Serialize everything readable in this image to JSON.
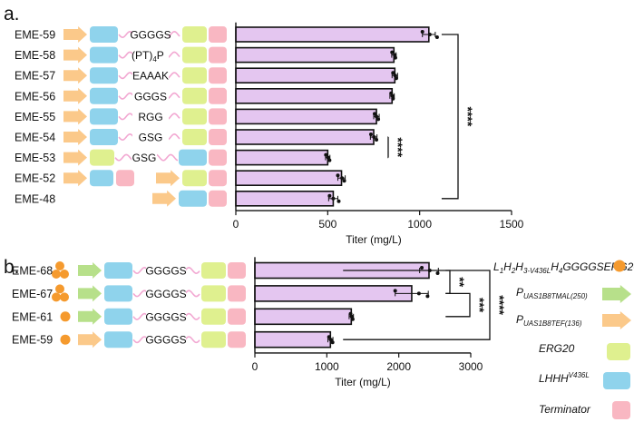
{
  "panel_labels": {
    "a": "a.",
    "b": "b."
  },
  "colors": {
    "bar_fill": "#e4c6f0",
    "bar_stroke": "#111111",
    "blue_gene": "#8fd3ec",
    "yellow_erg20": "#dff08f",
    "pink_terminator": "#f9b7c2",
    "orange_promoter": "#fbc98a",
    "green_promoter": "#b7e08a",
    "orange_dot": "#f59a2e",
    "linker_wave": "#f2a8d2"
  },
  "legend": {
    "items": [
      {
        "icon": "orange-circle",
        "sub_label": "L1H2H3-V436LH4GGGGSERG20"
      },
      {
        "icon": "green-arrow",
        "sub_label": "P UAS1B8TMAL(250)"
      },
      {
        "icon": "orange-arrow",
        "sub_label": "P UAS1B8TEF(136)"
      },
      {
        "icon": "yellow-box",
        "sub_label": "ERG20"
      },
      {
        "icon": "blue-box",
        "sub_label": "LHHH V436L"
      },
      {
        "icon": "pink-box",
        "sub_label": "Terminator"
      }
    ]
  },
  "chart_data": [
    {
      "type": "bar",
      "orientation": "horizontal",
      "panel": "a",
      "categories": [
        "EME-59",
        "EME-58",
        "EME-57",
        "EME-56",
        "EME-55",
        "EME-54",
        "EME-53",
        "EME-52",
        "EME-48"
      ],
      "linkers": [
        "GGGGS",
        "(PT)4P",
        "EAAAK",
        "GGGS",
        "RGG",
        "GSG",
        "GSG",
        "",
        ""
      ],
      "values": [
        1050,
        860,
        865,
        850,
        765,
        750,
        500,
        575,
        530
      ],
      "errors": [
        35,
        12,
        15,
        12,
        15,
        18,
        12,
        20,
        25
      ],
      "points": [
        [
          1015,
          1055,
          1095
        ],
        [
          850,
          865,
          868
        ],
        [
          855,
          867,
          873
        ],
        [
          845,
          852,
          855
        ],
        [
          755,
          765,
          775
        ],
        [
          735,
          752,
          765
        ],
        [
          490,
          502,
          510
        ],
        [
          555,
          578,
          590
        ],
        [
          510,
          530,
          560
        ]
      ],
      "xlabel": "Titer (mg/L)",
      "xlim": [
        0,
        1500
      ],
      "xticks": [
        0,
        500,
        1000,
        1500
      ],
      "significance": [
        {
          "between": [
            "EME-59",
            "EME-48"
          ],
          "label": "****"
        },
        {
          "between": [
            "EME-54",
            "EME-53"
          ],
          "label": "****"
        }
      ]
    },
    {
      "type": "bar",
      "orientation": "horizontal",
      "panel": "b",
      "categories": [
        "EME-68",
        "EME-67",
        "EME-61",
        "EME-59"
      ],
      "linkers": [
        "GGGGS",
        "GGGGS",
        "GGGGS",
        "GGGGS"
      ],
      "copies": [
        3,
        3,
        1,
        1
      ],
      "values": [
        2420,
        2180,
        1340,
        1050
      ],
      "errors": [
        130,
        230,
        30,
        35
      ],
      "points": [
        [
          2320,
          2430,
          2540
        ],
        [
          1950,
          2280,
          2400
        ],
        [
          1330,
          1345,
          1360
        ],
        [
          1030,
          1055,
          1080
        ]
      ],
      "xlabel": "Titer (mg/L)",
      "xlim": [
        0,
        3000
      ],
      "xticks": [
        0,
        1000,
        2000,
        3000
      ],
      "significance": [
        {
          "between": [
            "EME-68",
            "EME-67"
          ],
          "label": "**"
        },
        {
          "between": [
            "EME-67",
            "EME-61"
          ],
          "label": "***"
        },
        {
          "between": [
            "EME-68",
            "EME-59"
          ],
          "label": "****"
        }
      ]
    }
  ]
}
